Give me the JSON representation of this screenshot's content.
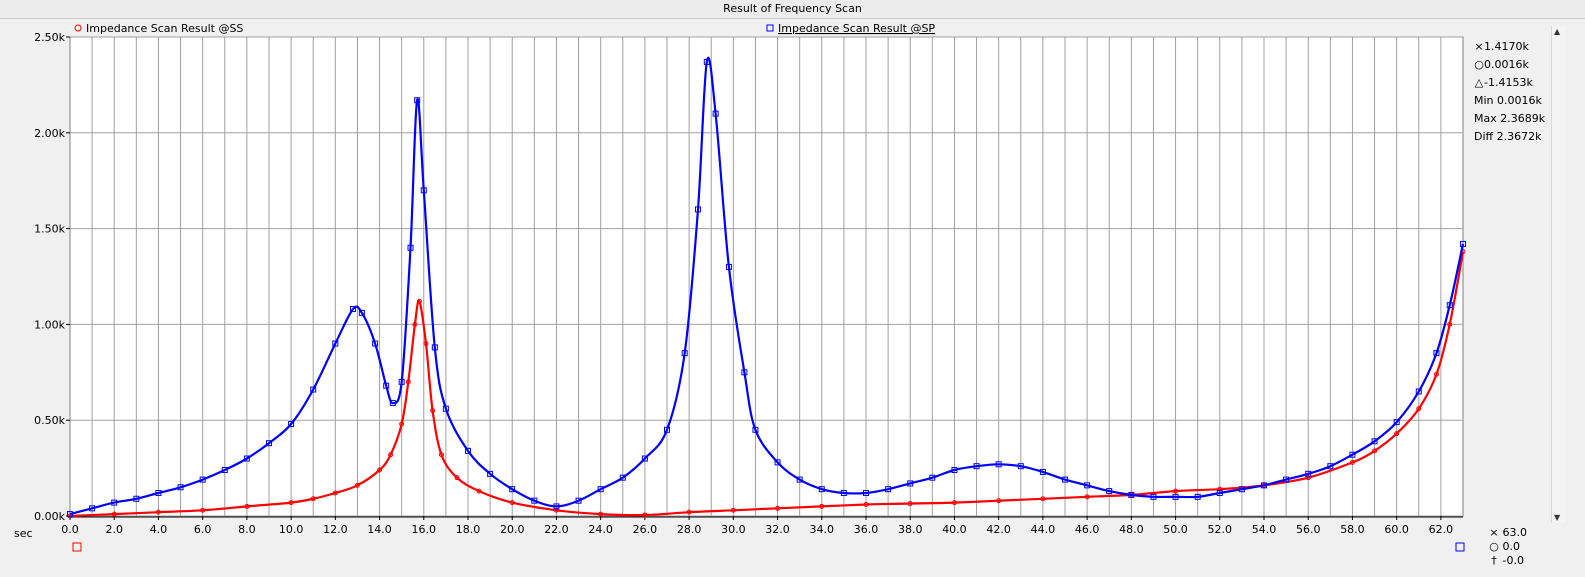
{
  "title": "Result of Frequency Scan",
  "x_unit": "sec",
  "legend": [
    {
      "symbol": "○",
      "label": "Impedance Scan Result @SS",
      "color": "#ff0000"
    },
    {
      "symbol": "□",
      "label": "Impedance Scan Result @SP",
      "color": "#0000ff"
    }
  ],
  "readout": [
    {
      "symbol": "×",
      "text": "1.4170k"
    },
    {
      "symbol": "○",
      "text": "0.0016k"
    },
    {
      "symbol": "△",
      "text": "-1.4153k"
    },
    {
      "symbol": "",
      "text": "Min 0.0016k"
    },
    {
      "symbol": "",
      "text": "Max 2.3689k"
    },
    {
      "symbol": "",
      "text": "Diff 2.3672k"
    }
  ],
  "cursor_readout": [
    {
      "symbol": "×",
      "text": "63.0"
    },
    {
      "symbol": "○",
      "text": "0.0"
    },
    {
      "symbol": "†",
      "text": "-0.0"
    }
  ],
  "colors": {
    "ss": "#ff0000",
    "sp": "#0000ff",
    "grid": "#a0a0a0",
    "plot_bg": "#ffffff"
  },
  "chart_data": {
    "type": "line",
    "title": "Result of Frequency Scan",
    "xlabel": "sec",
    "ylabel": "",
    "xlim": [
      0,
      63.0
    ],
    "ylim": [
      0,
      2.5
    ],
    "x_ticks": [
      "0.0",
      "2.0",
      "4.0",
      "6.0",
      "8.0",
      "10.0",
      "12.0",
      "14.0",
      "16.0",
      "18.0",
      "20.0",
      "22.0",
      "24.0",
      "26.0",
      "28.0",
      "30.0",
      "32.0",
      "34.0",
      "36.0",
      "38.0",
      "40.0",
      "42.0",
      "44.0",
      "46.0",
      "48.0",
      "50.0",
      "52.0",
      "54.0",
      "56.0",
      "58.0",
      "60.0",
      "62.0"
    ],
    "y_ticks": [
      {
        "value": 0,
        "label": "0.00k"
      },
      {
        "value": 0.5,
        "label": "0.50k"
      },
      {
        "value": 1.0,
        "label": "1.00k"
      },
      {
        "value": 1.5,
        "label": "1.50k"
      },
      {
        "value": 2.0,
        "label": "2.00k"
      },
      {
        "value": 2.5,
        "label": "2.50k"
      }
    ],
    "grid": true,
    "legend_position": "top",
    "series": [
      {
        "name": "Impedance Scan Result @SS",
        "color": "#ff0000",
        "marker": "circle",
        "points": [
          [
            0,
            0.0
          ],
          [
            2,
            0.01
          ],
          [
            4,
            0.02
          ],
          [
            6,
            0.03
          ],
          [
            8,
            0.05
          ],
          [
            10,
            0.07
          ],
          [
            11,
            0.09
          ],
          [
            12,
            0.12
          ],
          [
            13,
            0.16
          ],
          [
            14,
            0.24
          ],
          [
            14.5,
            0.32
          ],
          [
            15,
            0.48
          ],
          [
            15.3,
            0.7
          ],
          [
            15.6,
            1.0
          ],
          [
            15.8,
            1.12
          ],
          [
            16.1,
            0.9
          ],
          [
            16.4,
            0.55
          ],
          [
            16.8,
            0.32
          ],
          [
            17.5,
            0.2
          ],
          [
            18.5,
            0.13
          ],
          [
            20,
            0.07
          ],
          [
            22,
            0.03
          ],
          [
            24,
            0.01
          ],
          [
            26,
            0.005
          ],
          [
            28,
            0.02
          ],
          [
            30,
            0.03
          ],
          [
            32,
            0.04
          ],
          [
            34,
            0.05
          ],
          [
            36,
            0.06
          ],
          [
            38,
            0.065
          ],
          [
            40,
            0.07
          ],
          [
            42,
            0.08
          ],
          [
            44,
            0.09
          ],
          [
            46,
            0.1
          ],
          [
            48,
            0.11
          ],
          [
            50,
            0.13
          ],
          [
            52,
            0.14
          ],
          [
            54,
            0.16
          ],
          [
            56,
            0.2
          ],
          [
            58,
            0.28
          ],
          [
            59,
            0.34
          ],
          [
            60,
            0.43
          ],
          [
            61,
            0.56
          ],
          [
            61.8,
            0.74
          ],
          [
            62.4,
            1.0
          ],
          [
            63,
            1.38
          ]
        ]
      },
      {
        "name": "Impedance Scan Result @SP",
        "color": "#0000ff",
        "marker": "square",
        "points": [
          [
            0,
            0.01
          ],
          [
            1,
            0.04
          ],
          [
            2,
            0.07
          ],
          [
            3,
            0.09
          ],
          [
            4,
            0.12
          ],
          [
            5,
            0.15
          ],
          [
            6,
            0.19
          ],
          [
            7,
            0.24
          ],
          [
            8,
            0.3
          ],
          [
            9,
            0.38
          ],
          [
            10,
            0.48
          ],
          [
            11,
            0.66
          ],
          [
            12,
            0.9
          ],
          [
            12.8,
            1.08
          ],
          [
            13.2,
            1.06
          ],
          [
            13.8,
            0.9
          ],
          [
            14.3,
            0.68
          ],
          [
            14.6,
            0.59
          ],
          [
            15.0,
            0.7
          ],
          [
            15.4,
            1.4
          ],
          [
            15.7,
            2.17
          ],
          [
            16.0,
            1.7
          ],
          [
            16.5,
            0.88
          ],
          [
            17,
            0.56
          ],
          [
            18,
            0.34
          ],
          [
            19,
            0.22
          ],
          [
            20,
            0.14
          ],
          [
            21,
            0.08
          ],
          [
            22,
            0.05
          ],
          [
            23,
            0.08
          ],
          [
            24,
            0.14
          ],
          [
            25,
            0.2
          ],
          [
            26,
            0.3
          ],
          [
            27,
            0.45
          ],
          [
            27.8,
            0.85
          ],
          [
            28.4,
            1.6
          ],
          [
            28.8,
            2.37
          ],
          [
            29.2,
            2.1
          ],
          [
            29.8,
            1.3
          ],
          [
            30.5,
            0.75
          ],
          [
            31,
            0.45
          ],
          [
            32,
            0.28
          ],
          [
            33,
            0.19
          ],
          [
            34,
            0.14
          ],
          [
            35,
            0.12
          ],
          [
            36,
            0.12
          ],
          [
            37,
            0.14
          ],
          [
            38,
            0.17
          ],
          [
            39,
            0.2
          ],
          [
            40,
            0.24
          ],
          [
            41,
            0.26
          ],
          [
            42,
            0.27
          ],
          [
            43,
            0.26
          ],
          [
            44,
            0.23
          ],
          [
            45,
            0.19
          ],
          [
            46,
            0.16
          ],
          [
            47,
            0.13
          ],
          [
            48,
            0.11
          ],
          [
            49,
            0.1
          ],
          [
            50,
            0.1
          ],
          [
            51,
            0.1
          ],
          [
            52,
            0.12
          ],
          [
            53,
            0.14
          ],
          [
            54,
            0.16
          ],
          [
            55,
            0.19
          ],
          [
            56,
            0.22
          ],
          [
            57,
            0.26
          ],
          [
            58,
            0.32
          ],
          [
            59,
            0.39
          ],
          [
            60,
            0.49
          ],
          [
            61,
            0.65
          ],
          [
            61.8,
            0.85
          ],
          [
            62.4,
            1.1
          ],
          [
            63,
            1.42
          ]
        ]
      }
    ]
  }
}
